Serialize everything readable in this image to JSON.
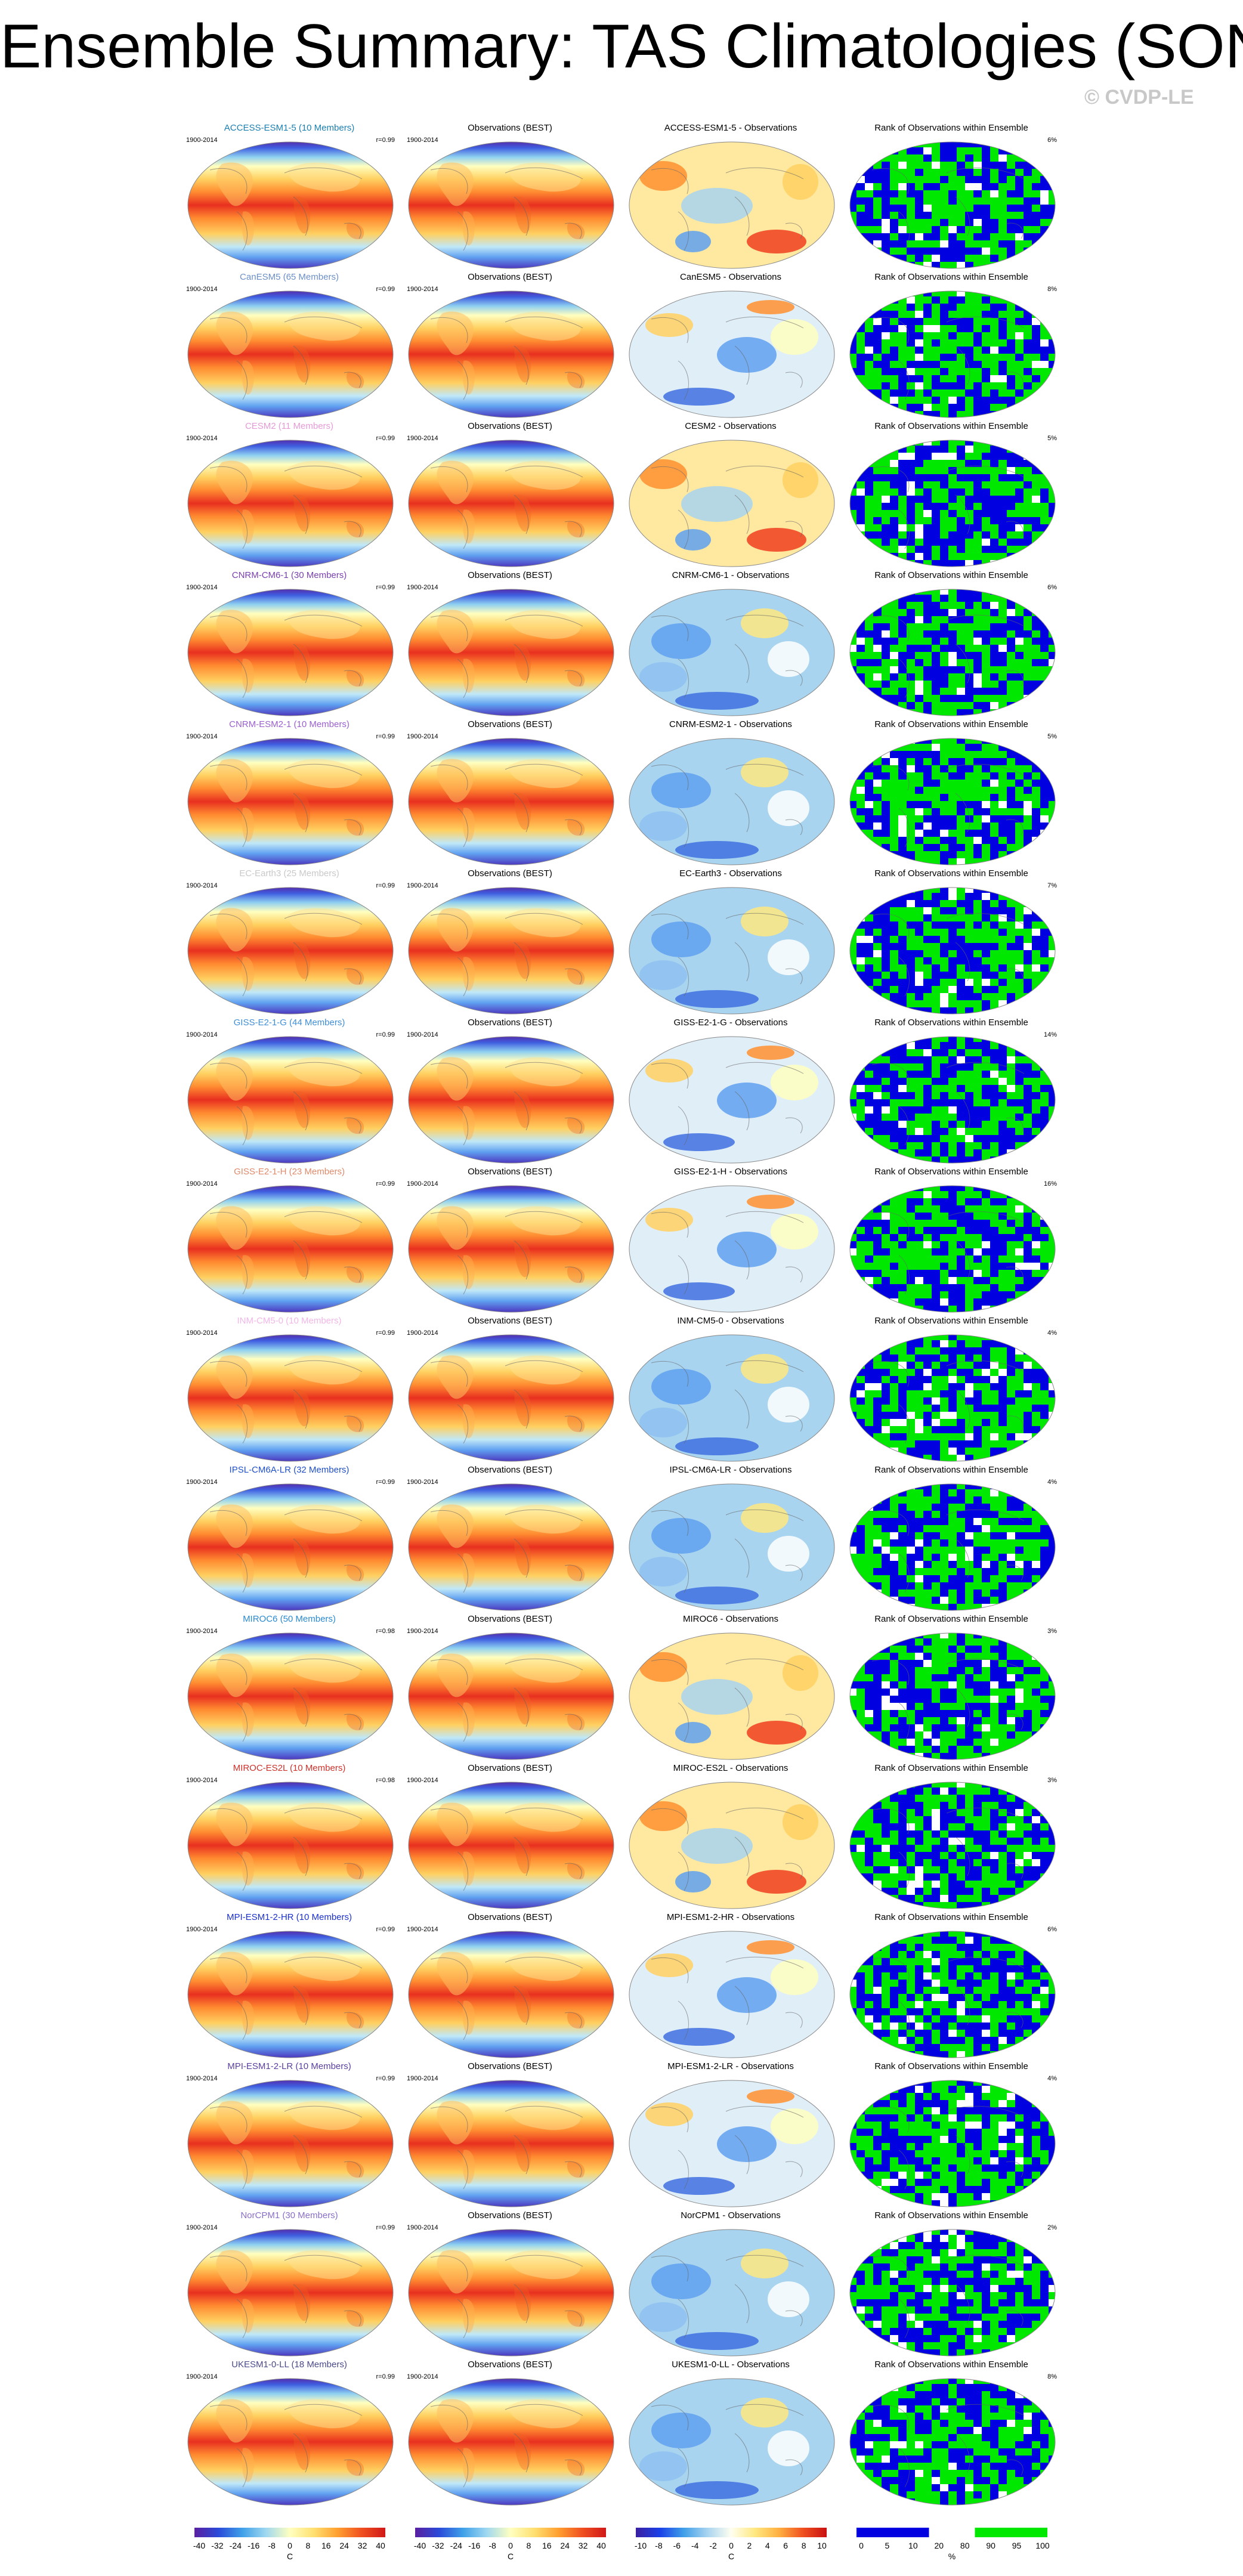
{
  "title": "Ensemble Summary: TAS Climatologies (SON)",
  "watermark": "© CVDP-LE",
  "period": "1900-2014",
  "obs_title": "Observations (BEST)",
  "rank_title": "Rank of Observations within Ensemble",
  "rows": [
    {
      "model": "ACCESS-ESM1-5 (10 Members)",
      "diff": "ACCESS-ESM1-5 - Observations",
      "r": "r=0.99",
      "pct": "6%",
      "color": "#1a7fb0",
      "dstyle": "warm"
    },
    {
      "model": "CanESM5 (65 Members)",
      "diff": "CanESM5 - Observations",
      "r": "r=0.99",
      "pct": "8%",
      "color": "#6b8fc8",
      "dstyle": "mixed"
    },
    {
      "model": "CESM2 (11 Members)",
      "diff": "CESM2 - Observations",
      "r": "r=0.99",
      "pct": "5%",
      "color": "#e79ad8",
      "dstyle": "warm"
    },
    {
      "model": "CNRM-CM6-1 (30 Members)",
      "diff": "CNRM-CM6-1 - Observations",
      "r": "r=0.99",
      "pct": "6%",
      "color": "#7a3fb0",
      "dstyle": "cool"
    },
    {
      "model": "CNRM-ESM2-1 (10 Members)",
      "diff": "CNRM-ESM2-1 - Observations",
      "r": "r=0.99",
      "pct": "5%",
      "color": "#9b5fd0",
      "dstyle": "cool"
    },
    {
      "model": "EC-Earth3 (25 Members)",
      "diff": "EC-Earth3 - Observations",
      "r": "r=0.99",
      "pct": "7%",
      "color": "#c9c9c9",
      "dstyle": "cool"
    },
    {
      "model": "GISS-E2-1-G (44 Members)",
      "diff": "GISS-E2-1-G - Observations",
      "r": "r=0.99",
      "pct": "14%",
      "color": "#3f8fd8",
      "dstyle": "mixed"
    },
    {
      "model": "GISS-E2-1-H (23 Members)",
      "diff": "GISS-E2-1-H - Observations",
      "r": "r=0.99",
      "pct": "16%",
      "color": "#e08a6a",
      "dstyle": "mixed"
    },
    {
      "model": "INM-CM5-0 (10 Members)",
      "diff": "INM-CM5-0 - Observations",
      "r": "r=0.99",
      "pct": "4%",
      "color": "#f2b7e8",
      "dstyle": "cool"
    },
    {
      "model": "IPSL-CM6A-LR (32 Members)",
      "diff": "IPSL-CM6A-LR - Observations",
      "r": "r=0.99",
      "pct": "4%",
      "color": "#1f4fc8",
      "dstyle": "cool"
    },
    {
      "model": "MIROC6 (50 Members)",
      "diff": "MIROC6 - Observations",
      "r": "r=0.98",
      "pct": "3%",
      "color": "#2a8ad0",
      "dstyle": "warm"
    },
    {
      "model": "MIROC-ES2L (10 Members)",
      "diff": "MIROC-ES2L - Observations",
      "r": "r=0.98",
      "pct": "3%",
      "color": "#d0302a",
      "dstyle": "warm"
    },
    {
      "model": "MPI-ESM1-2-HR (10 Members)",
      "diff": "MPI-ESM1-2-HR - Observations",
      "r": "r=0.99",
      "pct": "6%",
      "color": "#1a2fd0",
      "dstyle": "mixed"
    },
    {
      "model": "MPI-ESM1-2-LR (10 Members)",
      "diff": "MPI-ESM1-2-LR - Observations",
      "r": "r=0.99",
      "pct": "4%",
      "color": "#5a3fa0",
      "dstyle": "mixed"
    },
    {
      "model": "NorCPM1 (30 Members)",
      "diff": "NorCPM1 - Observations",
      "r": "r=0.99",
      "pct": "2%",
      "color": "#8a6fc8",
      "dstyle": "cool"
    },
    {
      "model": "UKESM1-0-LL (18 Members)",
      "diff": "UKESM1-0-LL - Observations",
      "r": "r=0.99",
      "pct": "8%",
      "color": "#4a4a8a",
      "dstyle": "cool"
    }
  ],
  "colorbars": [
    {
      "ticks": [
        "-40",
        "-32",
        "-24",
        "-16",
        "-8",
        "0",
        "8",
        "16",
        "24",
        "32",
        "40"
      ],
      "unit": "C",
      "kind": "abs"
    },
    {
      "ticks": [
        "-40",
        "-32",
        "-24",
        "-16",
        "-8",
        "0",
        "8",
        "16",
        "24",
        "32",
        "40"
      ],
      "unit": "C",
      "kind": "abs"
    },
    {
      "ticks": [
        "-10",
        "-8",
        "-6",
        "-4",
        "-2",
        "0",
        "2",
        "4",
        "6",
        "8",
        "10"
      ],
      "unit": "C",
      "kind": "diff"
    },
    {
      "ticks": [
        "0",
        "5",
        "10",
        "20",
        "80",
        "90",
        "95",
        "100"
      ],
      "unit": "%",
      "kind": "rank"
    }
  ],
  "colors": {
    "abs": [
      "#5a1fa0",
      "#2a4ad8",
      "#3fa0e8",
      "#9fd8f0",
      "#ffffc0",
      "#ffe070",
      "#ffa030",
      "#f05020",
      "#d01818"
    ],
    "diff": [
      "#3a1fa0",
      "#1a40e8",
      "#3f9fe8",
      "#a8d4f0",
      "#fffff0",
      "#ffe880",
      "#ffb040",
      "#f05020",
      "#c81010"
    ],
    "rank": [
      "#0000e0",
      "#0000e0",
      "#0000e0",
      "#ffffff",
      "#ffffff",
      "#00e800",
      "#00e800",
      "#00e800"
    ]
  }
}
